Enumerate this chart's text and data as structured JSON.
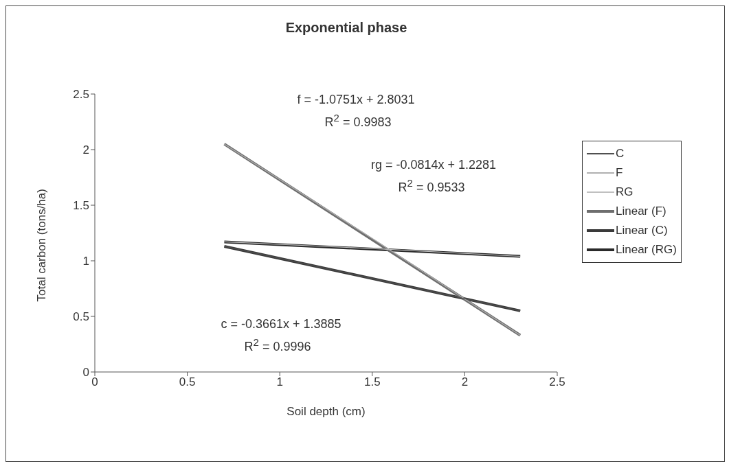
{
  "chart_data": {
    "type": "line",
    "title": "Exponential phase",
    "xlabel": "Soil depth (cm)",
    "ylabel": "Total carbon (tons/ha)",
    "xlim": [
      0,
      2.5
    ],
    "xticks": [
      0,
      0.5,
      1,
      1.5,
      2,
      2.5
    ],
    "ylim": [
      0,
      2.5
    ],
    "yticks": [
      0,
      0.5,
      1,
      1.5,
      2,
      2.5
    ],
    "grid": false,
    "legend": "right",
    "marker": "none",
    "line_style": "solid",
    "series": [
      {
        "name": "C",
        "color": "#505050",
        "x": [
          0.7,
          1.5,
          2.3
        ],
        "values": [
          1.13,
          0.84,
          0.55
        ]
      },
      {
        "name": "F",
        "color": "#b0b0b0",
        "x": [
          0.7,
          1.5,
          2.3
        ],
        "values": [
          2.05,
          1.2,
          0.33
        ]
      },
      {
        "name": "RG",
        "color": "#c0c0c0",
        "x": [
          0.7,
          1.5,
          2.3
        ],
        "values": [
          1.17,
          1.11,
          1.04
        ]
      },
      {
        "name": "Linear (F)",
        "color": "#6e6e6e",
        "x": [
          0.7,
          2.3
        ],
        "values": [
          2.05,
          0.33
        ]
      },
      {
        "name": "Linear (C)",
        "color": "#3a3a3a",
        "x": [
          0.7,
          2.3
        ],
        "values": [
          1.13,
          0.55
        ]
      },
      {
        "name": "Linear (RG)",
        "color": "#2a2a2a",
        "x": [
          0.7,
          2.3
        ],
        "values": [
          1.17,
          1.04
        ]
      }
    ],
    "annotations": [
      "f = -1.0751x + 2.8031",
      "R$^{2}$ = 0.9983",
      "rg = -0.0814x + 1.2281",
      "R$^{2}$ = 0.9533",
      "c = -0.3661x + 1.3885",
      "R$^{2}$ = 0.9996"
    ]
  }
}
